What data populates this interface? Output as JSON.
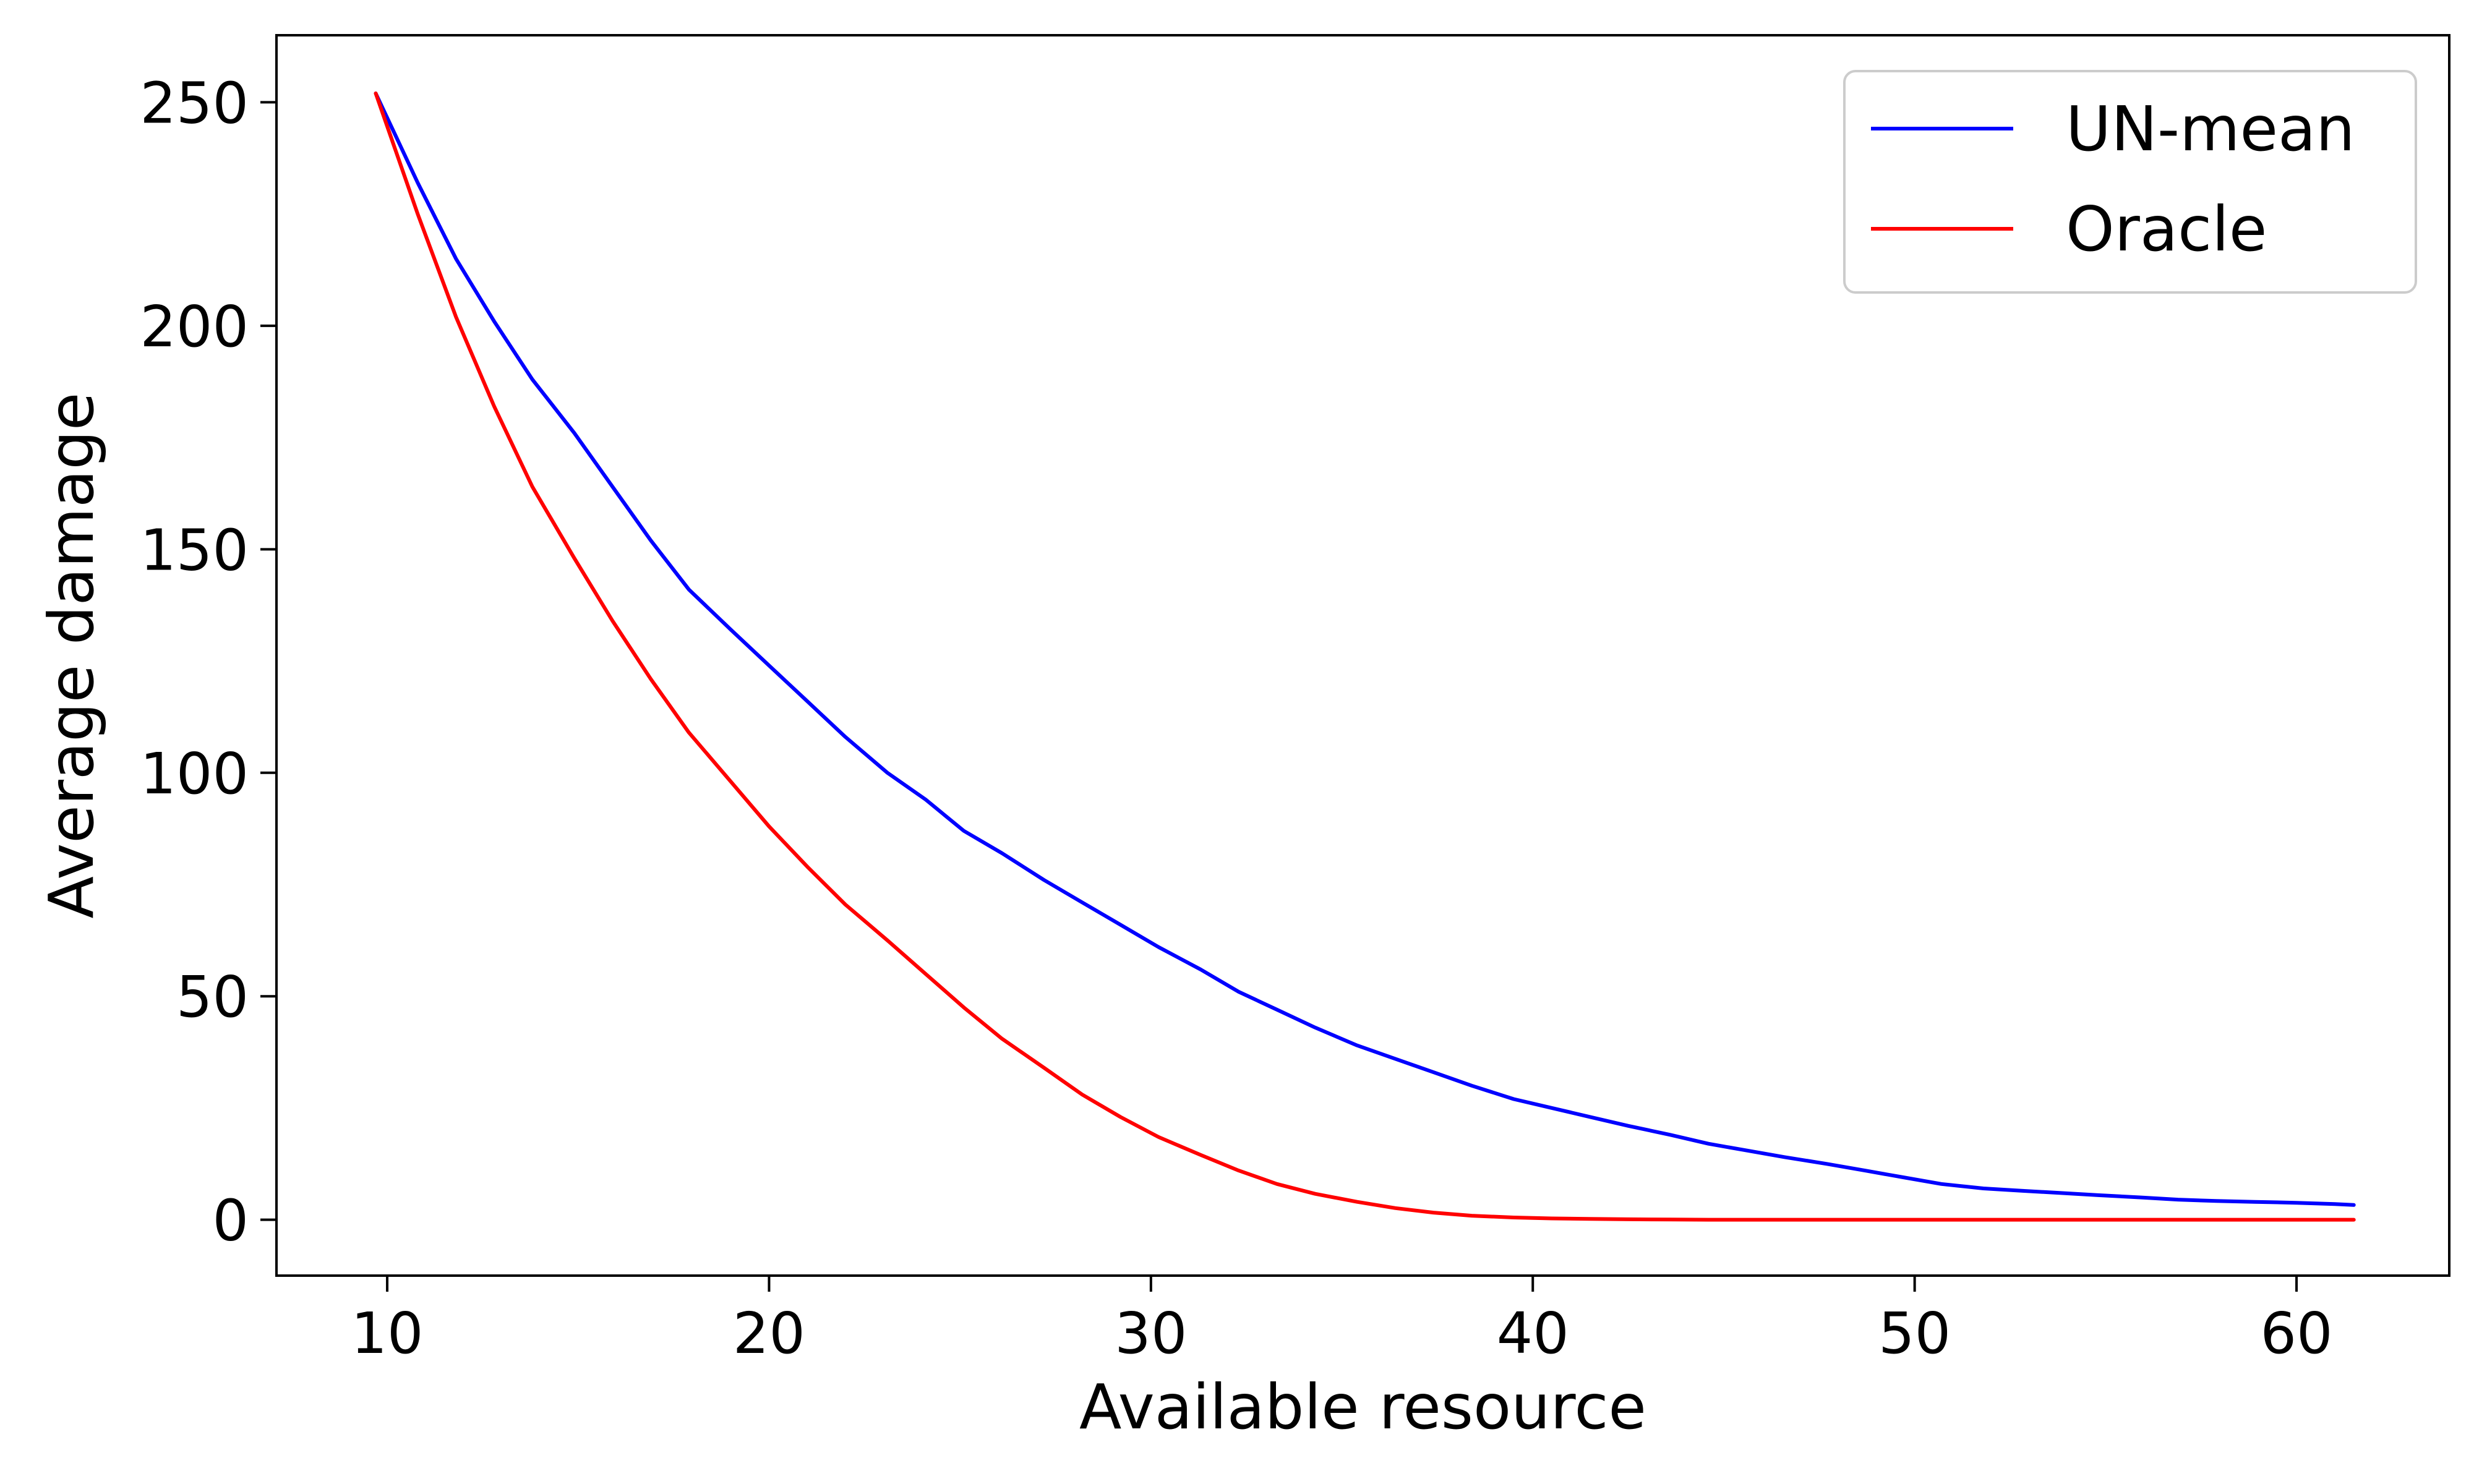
{
  "chart_data": {
    "type": "line",
    "title": "",
    "xlabel": "Available resource",
    "ylabel": "Average damage",
    "xlim": [
      7.1,
      64
    ],
    "ylim": [
      -12.5,
      265
    ],
    "xticks": [
      10,
      20,
      30,
      40,
      50,
      60
    ],
    "yticks": [
      0,
      50,
      100,
      150,
      200,
      250
    ],
    "xtick_labels": [
      "10",
      "20",
      "30",
      "40",
      "50",
      "60"
    ],
    "ytick_labels": [
      "0",
      "50",
      "100",
      "150",
      "200",
      "250"
    ],
    "grid": false,
    "legend_position": "top-right",
    "series": [
      {
        "name": "UN-mean",
        "color": "#0000ff",
        "x": [
          9.7,
          10.8,
          11.8,
          12.8,
          13.8,
          14.9,
          15.9,
          16.9,
          17.9,
          19.0,
          20.0,
          21.0,
          22.0,
          23.1,
          24.1,
          25.1,
          26.1,
          27.2,
          28.2,
          29.2,
          30.2,
          31.3,
          32.3,
          33.3,
          34.3,
          35.4,
          36.4,
          37.4,
          38.4,
          39.5,
          40.5,
          41.5,
          42.5,
          43.6,
          44.6,
          45.6,
          46.6,
          47.7,
          48.7,
          49.7,
          50.7,
          51.8,
          52.8,
          53.8,
          54.8,
          55.9,
          56.9,
          57.9,
          58.9,
          60.0,
          61.0,
          61.5
        ],
        "y": [
          252,
          232,
          215,
          201,
          188,
          176,
          164,
          152,
          141,
          132,
          124,
          116,
          108,
          100,
          94,
          87,
          82,
          76,
          71,
          66,
          61,
          56,
          51,
          47,
          43,
          39,
          36,
          33,
          30,
          27,
          25,
          23,
          21,
          19,
          17,
          15.5,
          14,
          12.5,
          11,
          9.5,
          8,
          7,
          6.5,
          6,
          5.5,
          5,
          4.5,
          4.2,
          4,
          3.8,
          3.5,
          3.3
        ]
      },
      {
        "name": "Oracle",
        "color": "#ff0000",
        "x": [
          9.7,
          10.8,
          11.8,
          12.8,
          13.8,
          14.9,
          15.9,
          16.9,
          17.9,
          19.0,
          20.0,
          21.0,
          22.0,
          23.1,
          24.1,
          25.1,
          26.1,
          27.2,
          28.2,
          29.2,
          30.2,
          31.3,
          32.3,
          33.3,
          34.3,
          35.4,
          36.4,
          37.4,
          38.4,
          39.5,
          40.5,
          41.5,
          42.5,
          43.6,
          44.6,
          45.6,
          46.6,
          47.7,
          48.7,
          49.7,
          50.7,
          51.8,
          52.8,
          53.8,
          54.8,
          55.9,
          56.9,
          57.9,
          58.9,
          60.0,
          61.0,
          61.5
        ],
        "y": [
          252,
          225,
          202,
          182,
          164,
          148,
          134,
          121,
          109,
          98,
          88,
          79,
          70.5,
          62.5,
          55,
          47.5,
          40.5,
          34,
          28,
          23,
          18.5,
          14.5,
          11,
          8,
          5.8,
          4,
          2.6,
          1.6,
          0.9,
          0.5,
          0.3,
          0.2,
          0.1,
          0.05,
          0,
          0,
          0,
          0,
          0,
          0,
          0,
          0,
          0,
          0,
          0,
          0,
          0,
          0,
          0,
          0,
          0,
          0
        ]
      }
    ]
  }
}
